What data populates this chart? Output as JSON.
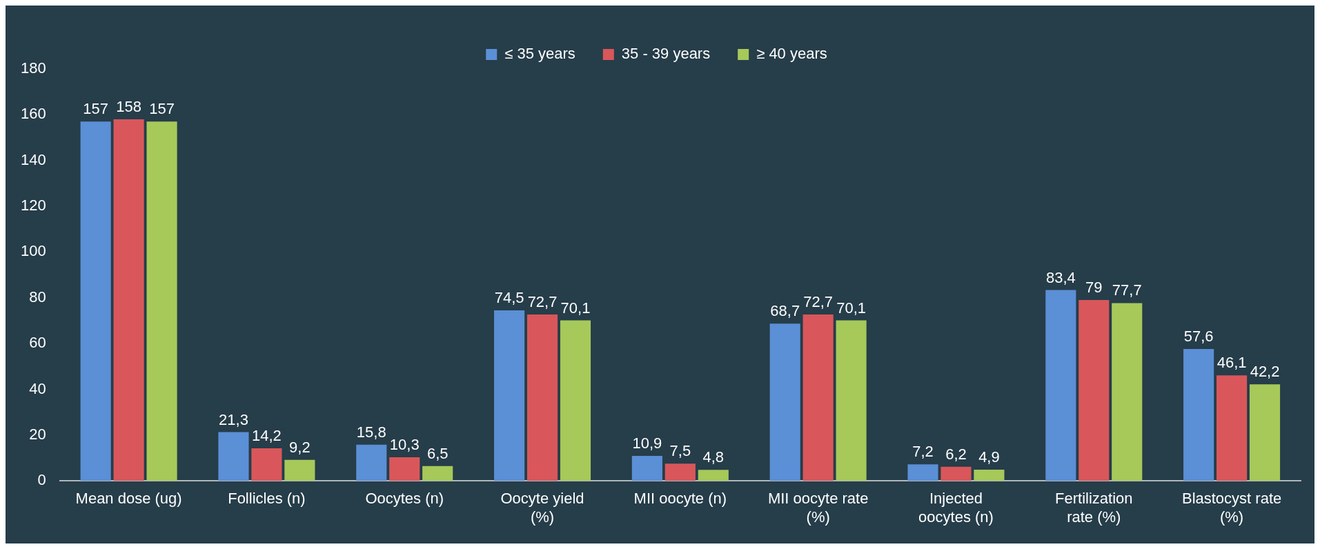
{
  "chart_data": {
    "type": "bar",
    "categories": [
      "Mean dose (ug)",
      "Follicles (n)",
      "Oocytes (n)",
      "Oocyte yield (%)",
      "MII oocyte (n)",
      "MII oocyte rate (%)",
      "Injected oocytes (n)",
      "Fertilization rate (%)",
      "Blastocyst rate (%)"
    ],
    "series": [
      {
        "name": "≤ 35 years",
        "color": "#5b8fd6",
        "values": [
          157,
          21.3,
          15.8,
          74.5,
          10.9,
          68.7,
          7.2,
          83.4,
          57.6
        ],
        "value_labels": [
          "157",
          "21,3",
          "15,8",
          "74,5",
          "10,9",
          "68,7",
          "7,2",
          "83,4",
          "57,6"
        ]
      },
      {
        "name": "35 - 39 years",
        "color": "#d9575a",
        "values": [
          158,
          14.2,
          10.3,
          72.7,
          7.5,
          72.7,
          6.2,
          79,
          46.1
        ],
        "value_labels": [
          "158",
          "14,2",
          "10,3",
          "72,7",
          "7,5",
          "72,7",
          "6,2",
          "79",
          "46,1"
        ]
      },
      {
        "name": "≥ 40 years",
        "color": "#a6c95a",
        "values": [
          157,
          9.2,
          6.5,
          70.1,
          4.8,
          70.1,
          4.9,
          77.7,
          42.2
        ],
        "value_labels": [
          "157",
          "9,2",
          "6,5",
          "70,1",
          "4,8",
          "70,1",
          "4,9",
          "77,7",
          "42,2"
        ]
      }
    ],
    "ylim": [
      0,
      180
    ],
    "yticks": [
      0,
      20,
      40,
      60,
      80,
      100,
      120,
      140,
      160,
      180
    ],
    "grid": false,
    "legend": "top"
  }
}
